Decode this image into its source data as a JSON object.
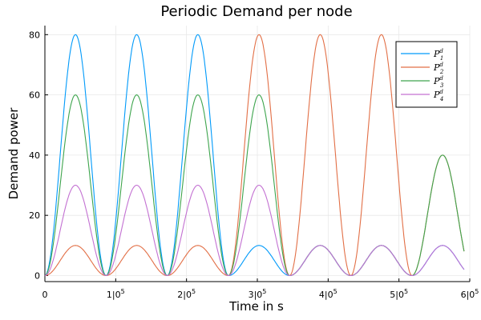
{
  "chart_data": {
    "type": "line",
    "title": "Periodic Demand per node",
    "xlabel": "Time in s",
    "ylabel": "Demand power",
    "xlim": [
      0,
      600000
    ],
    "ylim": [
      -2,
      83
    ],
    "x_ticks": [
      {
        "value": 0,
        "label": "0",
        "exp": ""
      },
      {
        "value": 100000,
        "label": "1|0",
        "exp": "5"
      },
      {
        "value": 200000,
        "label": "2|0",
        "exp": "5"
      },
      {
        "value": 300000,
        "label": "3|0",
        "exp": "5"
      },
      {
        "value": 400000,
        "label": "4|0",
        "exp": "5"
      },
      {
        "value": 500000,
        "label": "5|0",
        "exp": "5"
      },
      {
        "value": 600000,
        "label": "6|0",
        "exp": "5"
      }
    ],
    "y_ticks": [
      {
        "value": 0,
        "label": "0"
      },
      {
        "value": 20,
        "label": "20"
      },
      {
        "value": 40,
        "label": "40"
      },
      {
        "value": 60,
        "label": "60"
      },
      {
        "value": 80,
        "label": "80"
      }
    ],
    "grid": true,
    "legend_position": "top-right",
    "period_s": 86400,
    "series": [
      {
        "name": "P",
        "subscript": "1",
        "superscript": "d",
        "color": "#009AFA",
        "day_amplitudes": [
          80,
          80,
          80,
          10,
          10,
          10,
          10
        ]
      },
      {
        "name": "P",
        "subscript": "2",
        "superscript": "d",
        "color": "#E26F46",
        "day_amplitudes": [
          10,
          10,
          10,
          80,
          80,
          80,
          40
        ]
      },
      {
        "name": "P",
        "subscript": "3",
        "superscript": "d",
        "color": "#3DA44D",
        "day_amplitudes": [
          60,
          60,
          60,
          60,
          10,
          10,
          40
        ]
      },
      {
        "name": "P",
        "subscript": "4",
        "superscript": "d",
        "color": "#C371D2",
        "day_amplitudes": [
          30,
          30,
          30,
          30,
          10,
          10,
          10
        ]
      }
    ]
  }
}
